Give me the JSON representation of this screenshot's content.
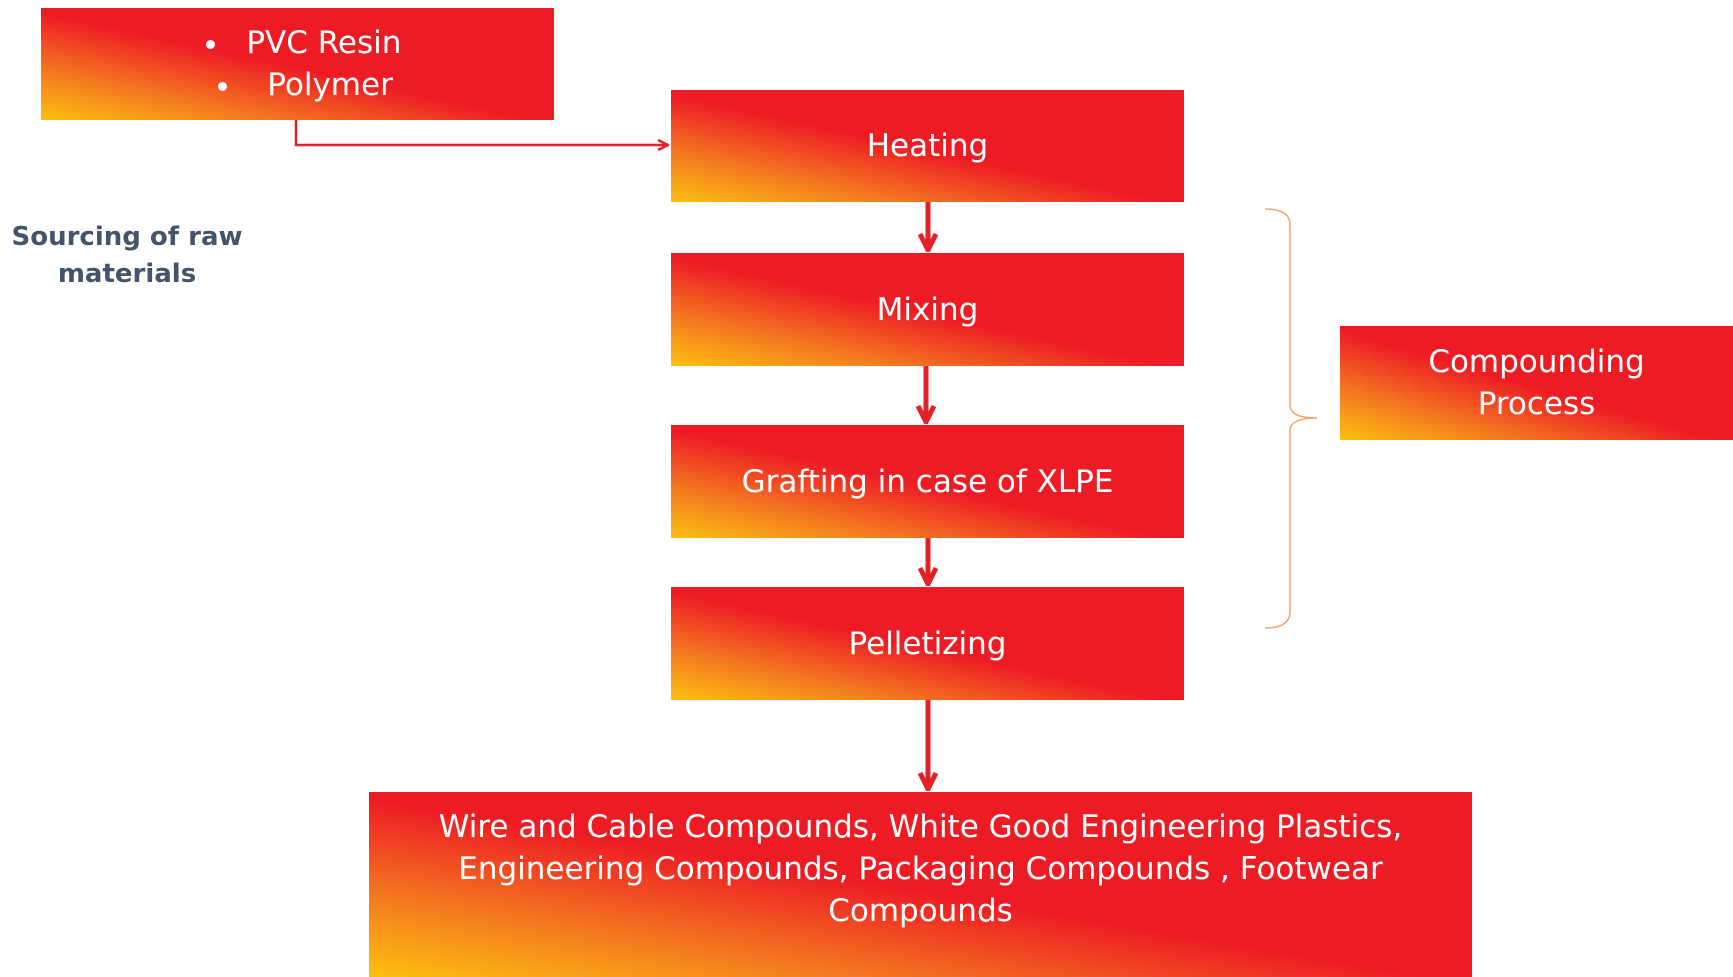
{
  "source": {
    "items": [
      "PVC Resin",
      "Polymer"
    ],
    "label": "Sourcing of raw materials"
  },
  "steps": [
    "Heating",
    "Mixing",
    "Grafting in case of XLPE",
    "Pelletizing"
  ],
  "group_label": "Compounding Process",
  "output": "Wire and Cable Compounds, White Good Engineering Plastics, Engineering Compounds, Packaging Compounds , Footwear Compounds"
}
